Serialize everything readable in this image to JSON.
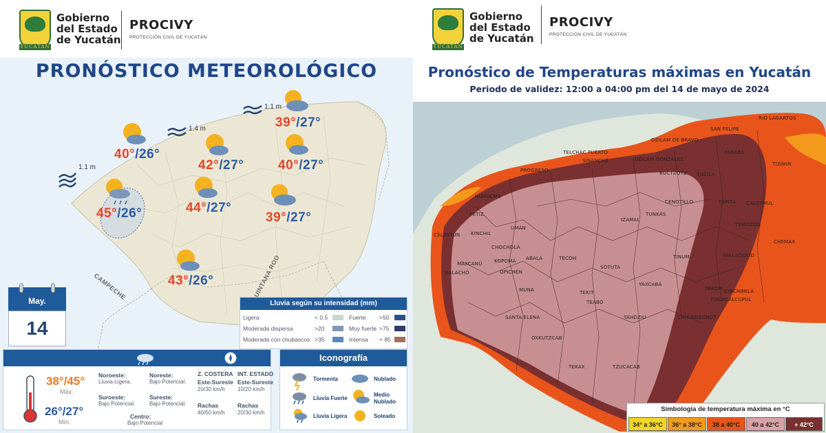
{
  "header": {
    "gov_line1": "Gobierno",
    "gov_line2": "del Estado",
    "gov_line3": "de Yucatán",
    "logo_band": "YUCATÁN",
    "procivy": "PROCIVY",
    "procivy_sub": "PROTECCIÓN CIVIL DE YUCATÁN"
  },
  "left": {
    "title": "PRONÓSTICO METEOROLÓGICO",
    "waves": [
      "1.1 m",
      "1.4 m",
      "1.1 m"
    ],
    "stations": [
      {
        "max": "40°",
        "min": "/26°",
        "icon": "partly-cloudy-icon"
      },
      {
        "max": "42°",
        "min": "/27°",
        "icon": "partly-cloudy-icon"
      },
      {
        "max": "39°",
        "min": "/27°",
        "icon": "cloudy-icon"
      },
      {
        "max": "40°",
        "min": "/27°",
        "icon": "partly-cloudy-icon"
      },
      {
        "max": "45°",
        "min": "/26°",
        "icon": "light-rain-icon"
      },
      {
        "max": "44°",
        "min": "/27°",
        "icon": "partly-cloudy-icon"
      },
      {
        "max": "39°",
        "min": "/27°",
        "icon": "cloudy-icon"
      },
      {
        "max": "43°",
        "min": "/26°",
        "icon": "partly-cloudy-icon"
      }
    ],
    "map_labels": {
      "campeche": "CAMPECHE",
      "quintana_roo": "QUINTANA ROO"
    },
    "calendar": {
      "month": "May.",
      "day": "14"
    },
    "rain_legend": {
      "title": "Lluvia según su intensidad",
      "unit": "(mm)",
      "items": [
        {
          "label": "Ligera",
          "value": "< 0.5",
          "color": "#c9d8d0"
        },
        {
          "label": "Moderada dispersa",
          "value": ">20",
          "color": "#7d97b8"
        },
        {
          "label": "Moderada con chubascos",
          "value": ">35",
          "color": "#5d86bb"
        },
        {
          "label": "Fuerte",
          "value": ">50",
          "color": "#2d4f86"
        },
        {
          "label": "Muy fuerte",
          "value": ">75",
          "color": "#2a3f6c"
        },
        {
          "label": "Intensa",
          "value": "> 85",
          "color": "#a07060"
        }
      ]
    },
    "info": {
      "temp_max": "38°/45°",
      "max_label": "Máx.",
      "temp_min": "26°/27°",
      "min_label": "Mín.",
      "regions": [
        {
          "name": "Noroeste:",
          "value": "Lluvia Ligera."
        },
        {
          "name": "Noreste:",
          "value": "Bajo Potencial."
        },
        {
          "name": "Suroeste:",
          "value": "Bajo Potencial."
        },
        {
          "name": "Sureste:",
          "value": "Bajo Potencial."
        },
        {
          "name": "Centro:",
          "value": "Bajo Potencial"
        }
      ],
      "coastal": {
        "title": "Z. COSTERA",
        "dir": "Este-Sureste",
        "speed": "20/30 km/h",
        "gust_label": "Rachas",
        "gust": "40/50 km/h"
      },
      "inland": {
        "title": "INT. ESTADO",
        "dir": "Este-Sureste",
        "speed": "10/20 km/h",
        "gust_label": "Rachas",
        "gust": "20/30 km/h"
      }
    },
    "iconografia": {
      "title": "Iconografía",
      "items": [
        "Tormenta",
        "Nublado",
        "Lluvia Fuerte",
        "Medio Nublado",
        "Lluvia Ligera",
        "Soleado"
      ]
    }
  },
  "right": {
    "title": "Pronóstico de Temperaturas máximas en Yucatán",
    "subtitle": "Periodo de validez: 12:00 a 04:00 pm del 14 de mayo de 2024",
    "municipalities": [
      "RIO LAGARTOS",
      "SAN FELIPE",
      "DZILAM DE BRAVO",
      "TELCHAC PUERTO",
      "SINANCHÉ",
      "DZILAM GONZÁLEZ",
      "PANABA",
      "TIZIMIN",
      "PROGRESO",
      "HUNUCMA",
      "BUCTZOTZ",
      "SUCILA",
      "TETIZ",
      "ESPITA",
      "CALOTMUL",
      "CELESTÚN",
      "KINCHIL",
      "IZAMAL",
      "TUNKÁS",
      "CENOTILLO",
      "TEMOZÓN",
      "UMÁN",
      "CHEMAX",
      "CHOCHOLÁ",
      "ABALÁ",
      "TECOH",
      "SOTUTA",
      "TINUM",
      "VALLADOLID",
      "MAXCANÚ",
      "KOPOMÁ",
      "OPICHÉN",
      "YAXCABÁ",
      "HALACHÓ",
      "MUNA",
      "TEKIT",
      "TEKOM",
      "CHICHIMILÁ",
      "TIXCACALCUPUL",
      "SANTA ELENA",
      "TEABO",
      "TAHDZIU",
      "CHIKINDZONOT",
      "OXKUTZCAB",
      "TEKAX",
      "TZUCACAB"
    ],
    "legend": {
      "title": "Simbología de temperatura máxima en °C",
      "items": [
        {
          "label": "34° a 36°C",
          "color": "#f5d327"
        },
        {
          "label": "36° a 38°C",
          "color": "#f39a1d"
        },
        {
          "label": "38 a 40°C",
          "color": "#e9531c"
        },
        {
          "label": "40 a 42°C",
          "color": "#d9a1a6"
        },
        {
          "label": "+ 42°C",
          "color": "#7a3030"
        }
      ]
    }
  }
}
